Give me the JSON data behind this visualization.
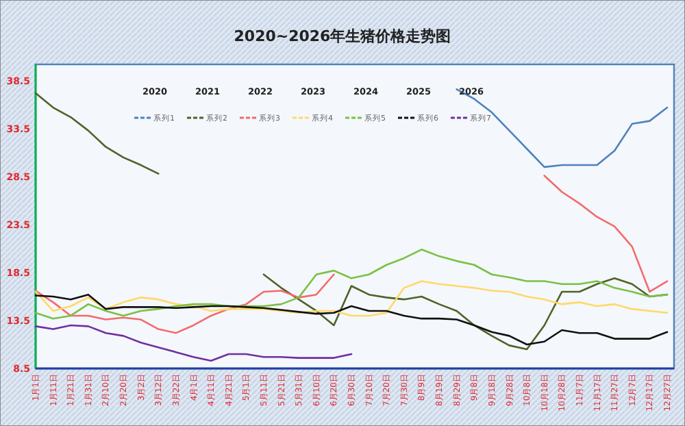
{
  "chart_data": {
    "type": "line",
    "title": "2020~2026年生猪价格走势图",
    "categories": [
      "1月1日",
      "1月11日",
      "1月21日",
      "1月31日",
      "2月10日",
      "2月20日",
      "3月2日",
      "3月12日",
      "3月22日",
      "4月1日",
      "4月11日",
      "4月21日",
      "5月1日",
      "5月11日",
      "5月21日",
      "5月31日",
      "6月10日",
      "6月20日",
      "6月30日",
      "7月10日",
      "7月20日",
      "7月30日",
      "8月9日",
      "8月19日",
      "8月29日",
      "9月8日",
      "9月18日",
      "9月28日",
      "10月8日",
      "10月18日",
      "10月28日",
      "11月7日",
      "11月17日",
      "11月27日",
      "12月7日",
      "12月17日",
      "12月27日"
    ],
    "series": [
      {
        "name": "系列1",
        "color": "#4f81bd",
        "values": [
          null,
          null,
          null,
          null,
          null,
          null,
          null,
          null,
          null,
          null,
          null,
          null,
          null,
          null,
          null,
          null,
          null,
          null,
          null,
          null,
          null,
          null,
          null,
          null,
          37.6,
          36.6,
          35.2,
          33.3,
          31.4,
          29.5,
          29.7,
          29.7,
          29.7,
          31.2,
          34.0,
          34.3,
          35.7
        ]
      },
      {
        "name": "系列2",
        "color": "#4f6228",
        "values": [
          37.2,
          35.7,
          34.7,
          33.3,
          31.6,
          30.5,
          29.7,
          28.8,
          null,
          null,
          null,
          null,
          null,
          18.3,
          16.9,
          15.7,
          14.5,
          13.0,
          17.1,
          16.2,
          15.9,
          15.7,
          16.0,
          15.2,
          14.5,
          13.0,
          11.9,
          10.9,
          10.5,
          13.0,
          16.5,
          16.5,
          17.3,
          17.9,
          17.3,
          16.0,
          16.2
        ]
      },
      {
        "name": "系列3",
        "color": "#f26b6b",
        "values": [
          16.6,
          15.4,
          14.0,
          14.0,
          13.6,
          13.8,
          13.6,
          12.6,
          12.2,
          13.0,
          14.0,
          14.7,
          15.2,
          16.5,
          16.6,
          15.9,
          16.2,
          18.3,
          null,
          null,
          null,
          null,
          null,
          null,
          null,
          null,
          null,
          null,
          null,
          28.6,
          26.9,
          25.7,
          24.3,
          23.3,
          21.2,
          16.5,
          17.6
        ]
      },
      {
        "name": "系列4",
        "color": "#ffd966",
        "values": [
          16.5,
          14.5,
          15.0,
          15.9,
          14.7,
          15.4,
          15.9,
          15.7,
          15.2,
          15.0,
          14.5,
          14.7,
          14.7,
          14.7,
          14.5,
          14.3,
          14.5,
          14.5,
          14.0,
          14.0,
          14.3,
          16.9,
          17.6,
          17.3,
          17.1,
          16.9,
          16.6,
          16.5,
          16.0,
          15.7,
          15.2,
          15.4,
          15.0,
          15.2,
          14.7,
          14.5,
          14.3
        ]
      },
      {
        "name": "系列5",
        "color": "#7ac143",
        "values": [
          14.3,
          13.7,
          14.0,
          15.2,
          14.5,
          14.0,
          14.5,
          14.7,
          15.0,
          15.2,
          15.2,
          15.0,
          15.0,
          15.0,
          15.2,
          15.9,
          18.3,
          18.7,
          17.9,
          18.3,
          19.3,
          20.0,
          20.9,
          20.2,
          19.7,
          19.3,
          18.3,
          18.0,
          17.6,
          17.6,
          17.3,
          17.3,
          17.6,
          16.9,
          16.5,
          16.0,
          16.2
        ]
      },
      {
        "name": "系列6",
        "color": "#111111",
        "values": [
          16.1,
          16.0,
          15.7,
          16.2,
          14.7,
          14.9,
          14.9,
          14.9,
          14.8,
          14.9,
          15.0,
          15.0,
          14.9,
          14.8,
          14.6,
          14.4,
          14.2,
          14.3,
          15.0,
          14.5,
          14.5,
          14.0,
          13.7,
          13.7,
          13.6,
          13.0,
          12.3,
          11.9,
          11.0,
          11.3,
          12.5,
          12.2,
          12.2,
          11.6,
          11.6,
          11.6,
          12.3
        ]
      },
      {
        "name": "系列7",
        "color": "#7030a0",
        "values": [
          12.9,
          12.6,
          13.0,
          12.9,
          12.2,
          11.9,
          11.2,
          10.7,
          10.2,
          9.7,
          9.3,
          10.0,
          10.0,
          9.7,
          9.7,
          9.6,
          9.6,
          9.6,
          10.0,
          null,
          null,
          null,
          null,
          null,
          null,
          null,
          null,
          null,
          null,
          null,
          null,
          null,
          null,
          null,
          null,
          null,
          null
        ]
      }
    ],
    "ylim": [
      8.5,
      40.2
    ],
    "yticks": [
      8.5,
      13.5,
      18.5,
      23.5,
      28.5,
      33.5,
      38.5
    ],
    "legend": "top",
    "grid": false,
    "annotations": [
      "2020",
      "2021",
      "2022",
      "2023",
      "2024",
      "2025",
      "2026"
    ]
  }
}
